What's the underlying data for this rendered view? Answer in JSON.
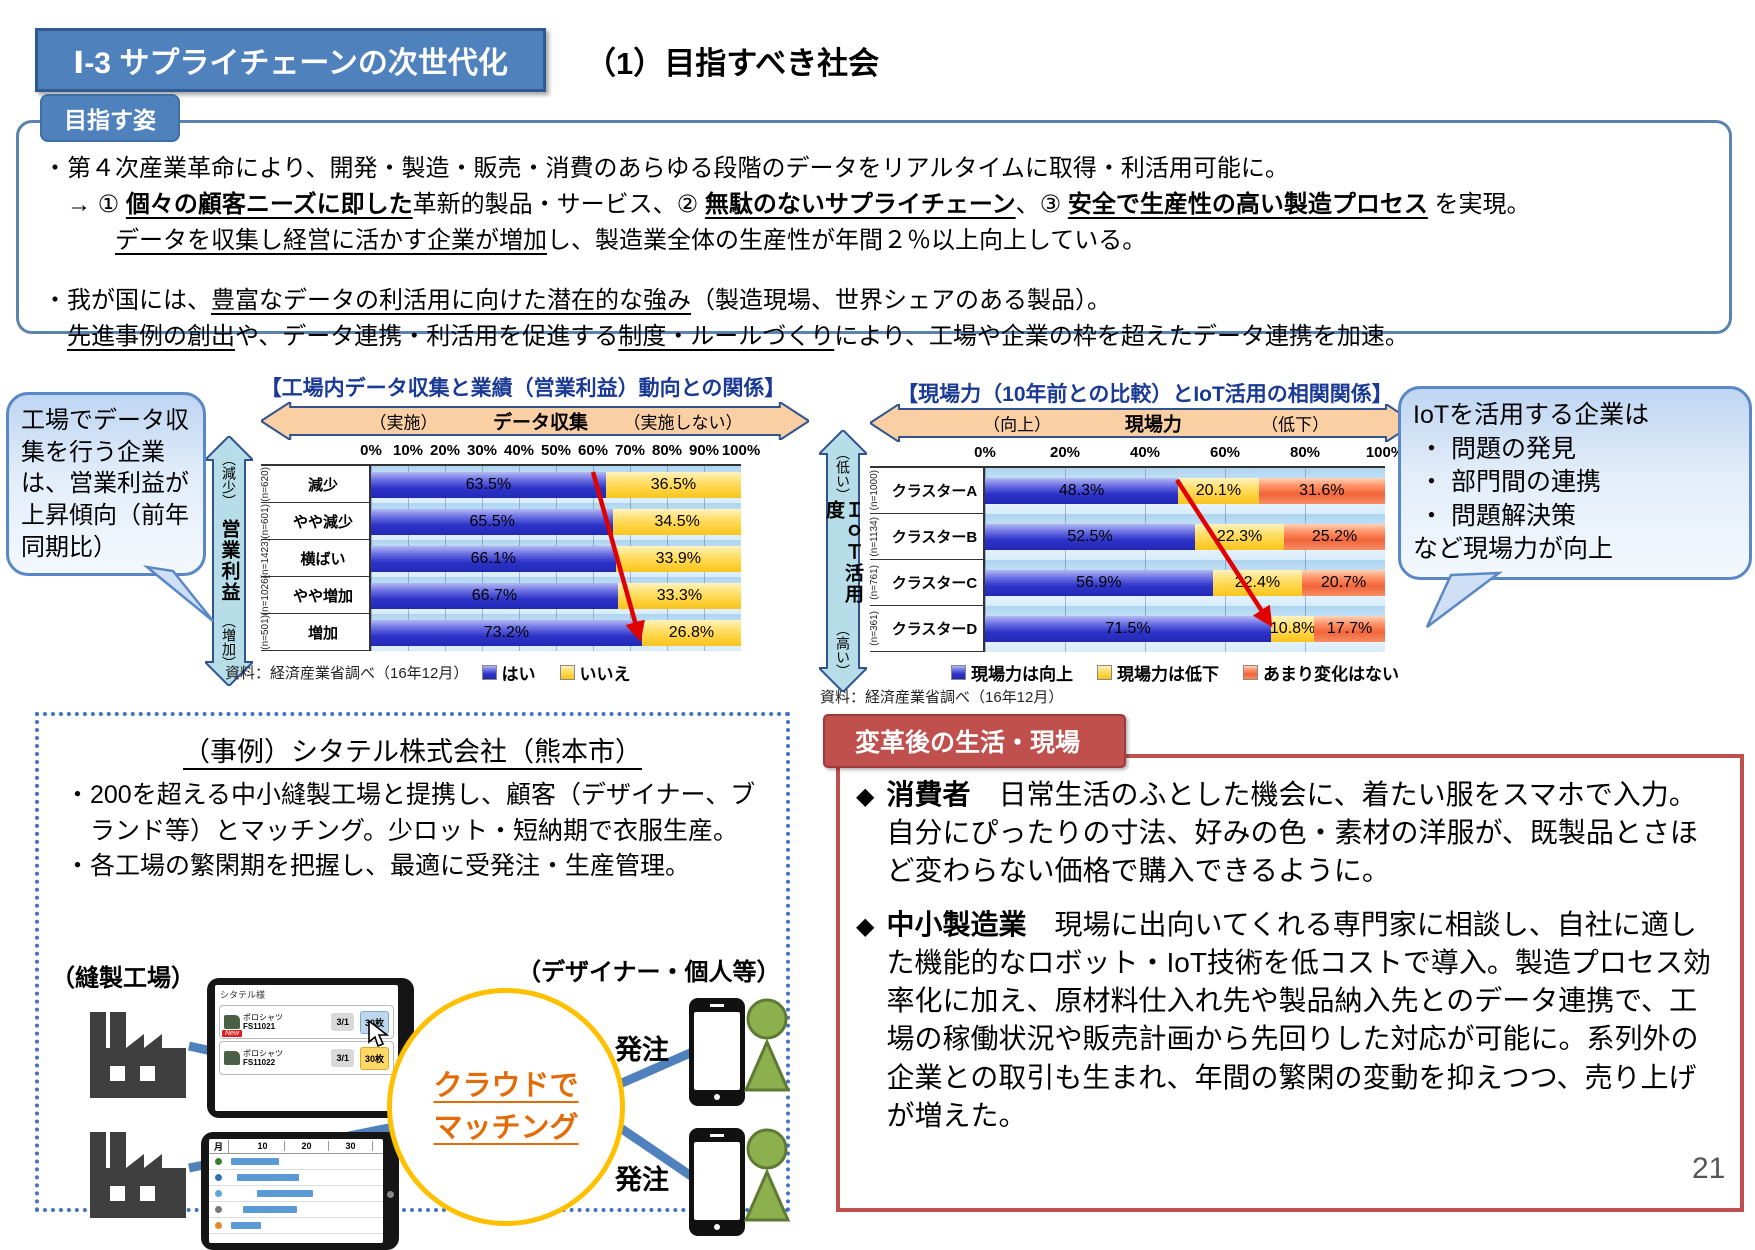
{
  "header": {
    "section_tag": "Ⅰ-3 サプライチェーンの次世代化",
    "subtitle": "（1）目指すべき社会"
  },
  "goal_box": {
    "tag": "目指す姿",
    "lines": [
      {
        "segments": [
          {
            "t": "・第４次産業革命により、開発・製造・販売・消費のあらゆる段階のデータをリアルタイムに取得・利活用可能に。"
          }
        ]
      },
      {
        "segments": [
          {
            "t": "　→ ① "
          },
          {
            "t": "個々の顧客ニーズに即した",
            "b": true,
            "u": true
          },
          {
            "t": "革新的製品・サービス、② "
          },
          {
            "t": "無駄のないサプライチェーン",
            "b": true,
            "u": true
          },
          {
            "t": "、③ "
          },
          {
            "t": "安全で生産性の高い製造プロセス",
            "b": true,
            "u": true
          },
          {
            "t": " を実現。"
          }
        ]
      },
      {
        "segments": [
          {
            "t": "　　　"
          },
          {
            "t": "データを収集し経営に活かす企業が増加",
            "u": true
          },
          {
            "t": "し、製造業全体の生産性が年間２％以上向上している。"
          }
        ]
      },
      {
        "gap": true,
        "segments": [
          {
            "t": "・我が国には、"
          },
          {
            "t": "豊富なデータの利活用に向けた潜在的な強み",
            "u": true
          },
          {
            "t": "（製造現場、世界シェアのある製品）。"
          }
        ]
      },
      {
        "segments": [
          {
            "t": "　"
          },
          {
            "t": "先進事例の創出",
            "u": true
          },
          {
            "t": "や、データ連携・利活用を促進する"
          },
          {
            "t": "制度・ルールづくり",
            "u": true
          },
          {
            "t": "により、工場や企業の枠を超えたデータ連携を加速。"
          }
        ]
      }
    ]
  },
  "chart_data": [
    {
      "type": "bar",
      "title": "【工場内データ収集と業績（営業利益）動向との関係】",
      "banner": {
        "left": "（実施）",
        "center": "データ収集",
        "right": "（実施しない）"
      },
      "side_axis": {
        "top": "（減少）",
        "label": "営業利益",
        "bottom": "（増加）"
      },
      "axis_ticks": [
        "0%",
        "10%",
        "20%",
        "30%",
        "40%",
        "50%",
        "60%",
        "70%",
        "80%",
        "90%",
        "100%"
      ],
      "xlim": [
        0,
        100
      ],
      "categories": [
        "減少",
        "やや減少",
        "横ばい",
        "やや増加",
        "増加"
      ],
      "n_labels": [
        "(n=620)",
        "(n=601)",
        "(n=1423)",
        "(n=1026)",
        "(n=501)"
      ],
      "series": [
        {
          "name": "はい",
          "color": "#2d33c8",
          "values": [
            63.5,
            65.5,
            66.1,
            66.7,
            73.2
          ]
        },
        {
          "name": "いいえ",
          "color": "#ffd23e",
          "values": [
            36.5,
            34.5,
            33.9,
            33.3,
            26.8
          ]
        }
      ],
      "source": "資料：経済産業省調べ（16年12月）",
      "callout": "工場でデータ収集を行う企業は、営業利益が上昇傾向（前年同期比）"
    },
    {
      "type": "bar",
      "title": "【現場力（10年前との比較）とIoT活用の相関関係】",
      "banner": {
        "left": "（向上）",
        "center": "現場力",
        "right": "（低下）"
      },
      "side_axis": {
        "top": "（低い）",
        "label": "ＩｏＴ活用度",
        "bottom": "（高い）"
      },
      "axis_ticks": [
        "0%",
        "20%",
        "40%",
        "60%",
        "80%",
        "100%"
      ],
      "xlim": [
        0,
        100
      ],
      "categories": [
        "クラスターA",
        "クラスターB",
        "クラスターC",
        "クラスターD"
      ],
      "n_labels": [
        "(n=1000)",
        "(n=1134)",
        "(n=761)",
        "(n=361)"
      ],
      "series": [
        {
          "name": "現場力は向上",
          "color": "#2d33c8",
          "values": [
            48.3,
            52.5,
            56.9,
            71.5
          ]
        },
        {
          "name": "現場力は低下",
          "color": "#ffd23e",
          "values": [
            20.1,
            22.3,
            22.4,
            10.8
          ]
        },
        {
          "name": "あまり変化はない",
          "color": "#f2643a",
          "values": [
            31.6,
            25.2,
            20.7,
            17.7
          ]
        }
      ],
      "source": "資料：経済産業省調べ（16年12月）",
      "callout": {
        "title": "IoTを活用する企業は",
        "bullets": [
          "・ 問題の発見",
          "・ 部門間の連携",
          "・ 問題解決策"
        ],
        "footer": "など現場力が向上"
      }
    }
  ],
  "case_study": {
    "title": "（事例）シタテル株式会社（熊本市）",
    "bullets": [
      "・200を超える中小縫製工場と提携し、顧客（デザイナー、ブランド等）とマッチング。少ロット・短納期で衣服生産。",
      "・各工場の繁閑期を把握し、最適に受発注・生産管理。"
    ],
    "left_label": "（縫製工場）",
    "right_label": "（デザイナー・個人等）",
    "cloud_lines": [
      "クラウドで",
      "マッチング"
    ],
    "order_labels": [
      "発注",
      "発注"
    ],
    "tablet1": {
      "header": "シタテル様",
      "items": [
        {
          "name": "ポロシャツ",
          "code": "FS11021",
          "badge": "New",
          "date": "3/1",
          "qty": "30枚",
          "qty_style": "qblue"
        },
        {
          "name": "ポロシャツ",
          "code": "FS11022",
          "badge": "",
          "date": "3/1",
          "qty": "30枚",
          "qty_style": "qorange"
        }
      ]
    },
    "tablet2": {
      "header_cells": [
        "月",
        "",
        "10",
        "20",
        "30"
      ]
    }
  },
  "after": {
    "header": "変革後の生活・現場",
    "marker": "◆",
    "items": [
      {
        "title": "消費者",
        "text": "日常生活のふとした機会に、着たい服をスマホで入力。自分にぴったりの寸法、好みの色・素材の洋服が、既製品とさほど変わらない価格で購入できるように。"
      },
      {
        "title": "中小製造業",
        "text": "現場に出向いてくれる専門家に相談し、自社に適した機能的なロボット・IoT技術を低コストで導入。製造プロセス効率化に加え、原材料仕入れ先や製品納入先とのデータ連携で、工場の稼働状況や販売計画から先回りした対応が可能に。系列外の企業との取引も生まれ、年間の繁閑の変動を抑えつつ、売り上げが増えた。"
      }
    ]
  },
  "page_number": "21",
  "colors": {
    "accent_blue": "#4f81bd",
    "title_blue": "#1b3a94",
    "red_accent": "#c0504d",
    "bar_blue": "#2d33c8",
    "bar_yellow": "#ffd23e",
    "bar_orange": "#f2643a",
    "banner_peach": "#fbcfa4",
    "side_arrow_teal": "#b7dee8",
    "cloud_ring": "#ffc000",
    "cloud_text": "#e36c09",
    "person_green": "#8db04e",
    "trend_red": "#e00000"
  }
}
